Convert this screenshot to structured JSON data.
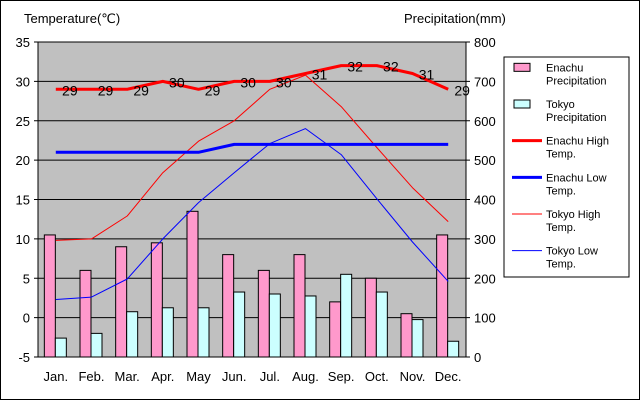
{
  "chart_data": {
    "type": "bar",
    "categories": [
      "Jan.",
      "Feb.",
      "Mar.",
      "Apr.",
      "May",
      "Jun.",
      "Jul.",
      "Aug.",
      "Sep.",
      "Oct.",
      "Nov.",
      "Dec."
    ],
    "y_left_label": "Temperature(℃)",
    "y_right_label": "Precipitation(mm)",
    "y_left_range": [
      -5,
      35
    ],
    "y_right_range": [
      0,
      800
    ],
    "y_left_ticks": [
      -5,
      0,
      5,
      10,
      15,
      20,
      25,
      30,
      35
    ],
    "y_right_ticks": [
      0,
      100,
      200,
      300,
      400,
      500,
      600,
      700,
      800
    ],
    "grid": true,
    "legend_position": "right",
    "bar_series": [
      {
        "name": "Enachu Precipitation",
        "legend_lines": [
          "Enachu",
          "Precipitation"
        ],
        "color": "#ff99cc",
        "axis": "right",
        "values": [
          310,
          220,
          280,
          290,
          370,
          260,
          220,
          260,
          140,
          200,
          110,
          310
        ]
      },
      {
        "name": "Tokyo Precipitation",
        "legend_lines": [
          "Tokyo",
          "Precipitation"
        ],
        "color": "#ccffff",
        "axis": "right",
        "values": [
          48,
          60,
          115,
          125,
          125,
          165,
          160,
          155,
          210,
          165,
          95,
          40
        ]
      }
    ],
    "line_series": [
      {
        "name": "Enachu High Temp.",
        "legend_lines": [
          "Enachu High",
          "Temp."
        ],
        "color": "#ff0000",
        "width": 3,
        "axis": "left",
        "values": [
          29,
          29,
          29,
          30,
          29,
          30,
          30,
          31,
          32,
          32,
          31,
          29
        ],
        "labels": [
          "29",
          "29",
          "29",
          "30",
          "29",
          "30",
          "30",
          "31",
          "32",
          "32",
          "31",
          "29"
        ]
      },
      {
        "name": "Enachu Low Temp.",
        "legend_lines": [
          "Enachu Low",
          "Temp."
        ],
        "color": "#0000ff",
        "width": 3,
        "axis": "left",
        "values": [
          21,
          21,
          21,
          21,
          21,
          22,
          22,
          22,
          22,
          22,
          22,
          22
        ]
      },
      {
        "name": "Tokyo High Temp.",
        "legend_lines": [
          "Tokyo High",
          "Temp."
        ],
        "color": "#ff0000",
        "width": 1,
        "axis": "left",
        "values": [
          9.8,
          10,
          12.9,
          18.4,
          22.4,
          25,
          29,
          30.8,
          26.8,
          21.6,
          16.5,
          12.2
        ]
      },
      {
        "name": "Tokyo Low Temp.",
        "legend_lines": [
          "Tokyo Low",
          "Temp."
        ],
        "color": "#0000ff",
        "width": 1,
        "axis": "left",
        "values": [
          2.3,
          2.6,
          4.9,
          10,
          14.6,
          18.4,
          22.1,
          24,
          20.7,
          15.1,
          9.6,
          4.6
        ]
      }
    ]
  }
}
